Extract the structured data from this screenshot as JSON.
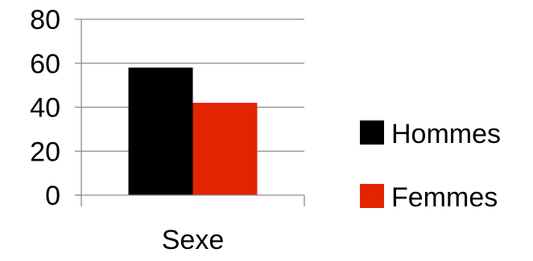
{
  "chart_data": {
    "type": "bar",
    "categories": [
      "Sexe"
    ],
    "series": [
      {
        "name": "Hommes",
        "values": [
          58
        ],
        "color": "#000000"
      },
      {
        "name": "Femmes",
        "values": [
          42
        ],
        "color": "#e32400"
      }
    ],
    "title": "",
    "xlabel": "",
    "ylabel": "",
    "ylim": [
      0,
      80
    ],
    "yticks": [
      0,
      20,
      40,
      60,
      80
    ],
    "grid": true,
    "legend_position": "right"
  }
}
